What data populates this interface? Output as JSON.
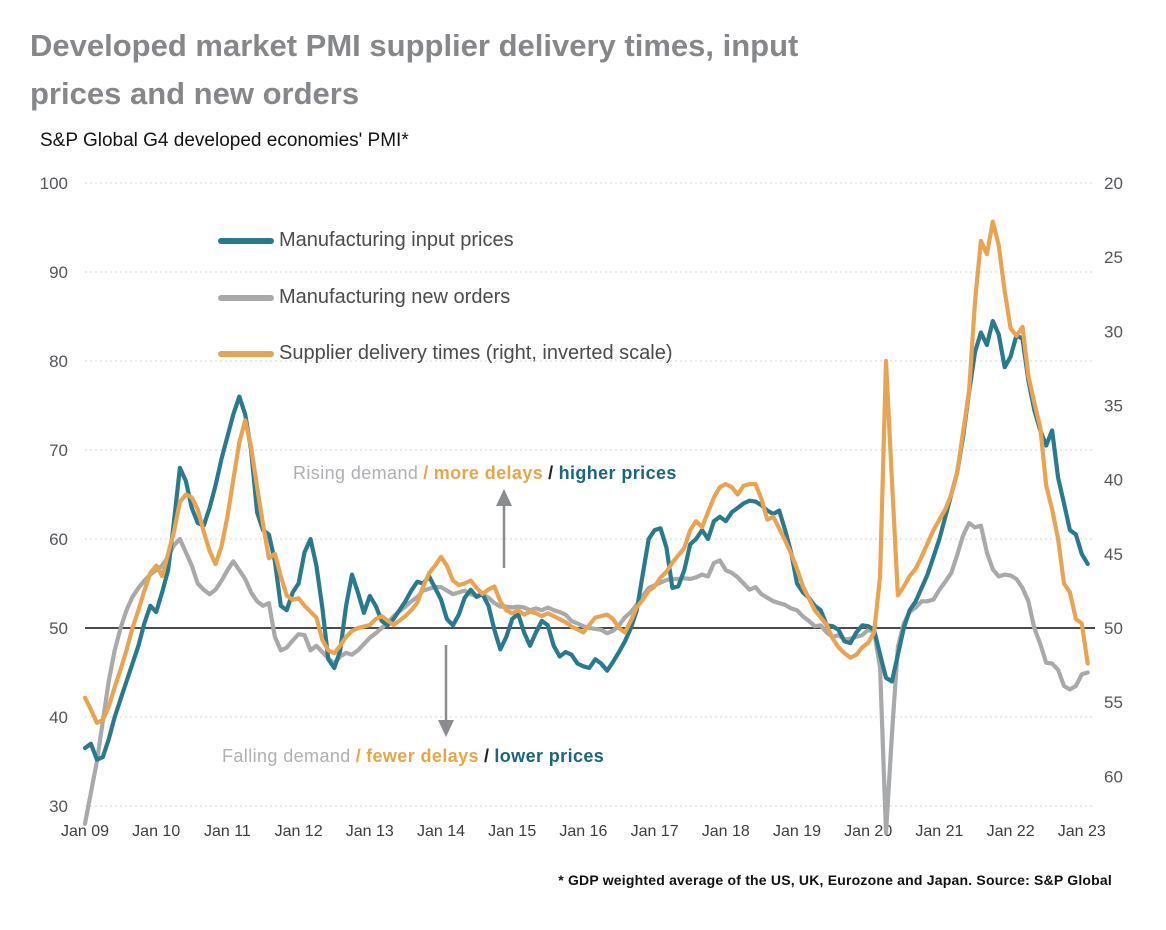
{
  "title": {
    "line1": "Developed market PMI supplier delivery times, input",
    "line2": "prices and new orders"
  },
  "subtitle": "S&P Global G4 developed economies' PMI*",
  "footnote": "* GDP weighted average of the US, UK, Eurozone and Japan.   Source: S&P Global",
  "colors": {
    "input_prices": "#2a7a8e",
    "new_orders": "#a7a9ab",
    "delivery_times": "#e9a452",
    "grid": "#d4d4d4",
    "fifty_line": "#4b4b4d",
    "title": "#85878a",
    "axis_text": "#55565a",
    "arrow": "#8a8c8f"
  },
  "legend": [
    {
      "label": "Manufacturing input prices",
      "color": "#2a7a8e"
    },
    {
      "label": "Manufacturing new orders",
      "color": "#a7a9ab"
    },
    {
      "label": "Supplier delivery times (right, inverted scale)",
      "color": "#e9a452"
    }
  ],
  "annotations": {
    "rising": {
      "demand": "Rising demand",
      "slash1": "/",
      "delays": "more delays",
      "slash2": "/",
      "prices": "higher prices"
    },
    "falling": {
      "demand": "Falling demand",
      "slash1": "/",
      "delays": "fewer delays",
      "slash2": "/",
      "prices": "lower prices"
    }
  },
  "chart_data": {
    "type": "line",
    "x_unit": "monthly",
    "x_start": "Jan 2009",
    "x_end": "Feb 2023",
    "x_ticks": [
      "Jan 09",
      "Jan 10",
      "Jan 11",
      "Jan 12",
      "Jan 13",
      "Jan 14",
      "Jan 15",
      "Jan 16",
      "Jan 17",
      "Jan 18",
      "Jan 19",
      "Jan 20",
      "Jan 21",
      "Jan 22",
      "Jan 23"
    ],
    "left_axis": {
      "ticks": [
        100,
        90,
        80,
        70,
        60,
        50,
        40,
        30
      ],
      "range": [
        30,
        100
      ],
      "grid": "dotted"
    },
    "right_axis": {
      "ticks": [
        20,
        25,
        30,
        35,
        40,
        45,
        50,
        55,
        60
      ],
      "range": [
        20,
        60
      ],
      "inverted": true
    },
    "reference_line": {
      "value": 50,
      "axis": "left"
    },
    "legend_position": "top-left-inside",
    "series": [
      {
        "name": "Manufacturing new orders",
        "axis": "left",
        "color": "#a7a9ab",
        "values": [
          28,
          31.5,
          35,
          39.5,
          44,
          47.5,
          50,
          52,
          53.5,
          54.5,
          55.3,
          56,
          56.5,
          57,
          58,
          59.3,
          60,
          58.5,
          57,
          55,
          54.3,
          53.8,
          54.3,
          55.3,
          56.5,
          57.5,
          56.5,
          55.5,
          54,
          53,
          52.5,
          52.8,
          49,
          47.5,
          47.8,
          48.6,
          49.3,
          49.2,
          47.5,
          48,
          47.3,
          46.6,
          46,
          46.8,
          47.2,
          47,
          47.5,
          48.2,
          48.9,
          49.4,
          50,
          50.6,
          51.3,
          51.9,
          52.4,
          53,
          53.5,
          54.2,
          54.4,
          54.6,
          54.6,
          54.2,
          53.8,
          54,
          54.2,
          53.8,
          53.6,
          53.8,
          53.4,
          52.8,
          52.4,
          52.4,
          52.3,
          52.4,
          52.3,
          52,
          52.2,
          52,
          52.3,
          52,
          51.8,
          51.5,
          50.8,
          50.5,
          50.2,
          50,
          49.9,
          49.8,
          49.4,
          49.7,
          50.3,
          51.2,
          51.8,
          52.6,
          53.6,
          54.5,
          54.8,
          55.1,
          55.4,
          55.5,
          55.5,
          55.6,
          55.5,
          55.7,
          56,
          55.8,
          57.3,
          57.6,
          56.5,
          56.2,
          55.7,
          55,
          54.3,
          54.6,
          53.8,
          53.4,
          53,
          52.8,
          52.6,
          52.2,
          52,
          51.3,
          50.8,
          50.2,
          50.3,
          49.5,
          49,
          49.2,
          48.7,
          48.8,
          49,
          49.2,
          49.8,
          49.6,
          45.5,
          27,
          38,
          47.9,
          50.5,
          51.8,
          52.3,
          53,
          53,
          53.2,
          54.3,
          55.2,
          56.2,
          58.2,
          60.4,
          61.8,
          61.3,
          61.5,
          58.5,
          56.6,
          55.8,
          56,
          55.9,
          55.5,
          54.5,
          53,
          50,
          48.2,
          46.1,
          46,
          45.3,
          43.5,
          43.1,
          43.5,
          44.8,
          45
        ]
      },
      {
        "name": "Manufacturing input prices",
        "axis": "left",
        "color": "#2a7a8e",
        "values": [
          36.5,
          37,
          35.2,
          35.5,
          37.5,
          40,
          42,
          44,
          46,
          48,
          50.5,
          52.5,
          51.8,
          54,
          56.5,
          62,
          68,
          66.5,
          63.5,
          61.8,
          61.5,
          63.5,
          66,
          69,
          71.5,
          74,
          76,
          74,
          70,
          63,
          61,
          60.5,
          57.5,
          52.5,
          52,
          54,
          55,
          58.5,
          60,
          57,
          52.3,
          46.5,
          45.5,
          47.4,
          52.5,
          56,
          54,
          51.7,
          53.6,
          52.5,
          50.8,
          50.3,
          51,
          52,
          53,
          54.2,
          55.2,
          55,
          55.8,
          54.5,
          53.2,
          51,
          50.3,
          51.5,
          53.4,
          54.3,
          53.5,
          53.8,
          52.5,
          49.8,
          47.6,
          49,
          51,
          51.6,
          49.5,
          48,
          49.5,
          50.8,
          50.3,
          48,
          46.8,
          47.3,
          47,
          46,
          45.7,
          45.5,
          46.5,
          46,
          45.2,
          46.2,
          47.3,
          48.5,
          50,
          52,
          56,
          60,
          61,
          61.2,
          59,
          54.5,
          54.7,
          56.5,
          59.4,
          60,
          61,
          60,
          62,
          62.5,
          62,
          63,
          63.5,
          64,
          64.3,
          64.2,
          63.8,
          63.2,
          62.8,
          63.2,
          61,
          58.5,
          55,
          54,
          53.4,
          52.5,
          52,
          50.3,
          50.2,
          49.8,
          48.5,
          48.3,
          49.5,
          50.3,
          50.2,
          49.8,
          47,
          44.4,
          44,
          47,
          50,
          52,
          53,
          54.5,
          56,
          58,
          60,
          62.5,
          65,
          67.5,
          71.5,
          76.5,
          81,
          83.2,
          81.8,
          84.5,
          83,
          79.3,
          80.5,
          82.9,
          82.5,
          77.8,
          74.5,
          72.2,
          70.5,
          72.2,
          66.9,
          64,
          61,
          60.5,
          58.3,
          57.2
        ]
      },
      {
        "name": "Supplier delivery times",
        "axis": "right",
        "color": "#e9a452",
        "values": [
          54.7,
          55.5,
          56.4,
          56.2,
          55.3,
          54,
          52.8,
          51.5,
          50,
          48.8,
          47.5,
          46.3,
          45.8,
          46.5,
          45,
          43.5,
          41.5,
          41,
          41.2,
          42,
          43.5,
          44.8,
          45.7,
          44.5,
          42.5,
          40,
          37.5,
          36,
          37.8,
          40.5,
          43,
          45.3,
          45,
          46.5,
          47.8,
          48.1,
          48,
          48.5,
          48.9,
          49.3,
          50.8,
          51.5,
          51.7,
          51.2,
          50.6,
          50.2,
          50,
          49.9,
          49.8,
          49.4,
          49.2,
          49.5,
          49.8,
          49.5,
          49.2,
          48.8,
          48.3,
          47.2,
          46.3,
          45.8,
          45.2,
          45.8,
          46.8,
          47.1,
          47,
          46.8,
          47.3,
          47.7,
          47.4,
          47.2,
          48.2,
          48.8,
          49,
          48.8,
          49.1,
          48.9,
          49,
          49.2,
          49,
          49.2,
          49.4,
          49.6,
          49.9,
          50.1,
          50.3,
          49.8,
          49.3,
          49.2,
          49.1,
          49.4,
          50,
          50.3,
          49.5,
          48.6,
          48.1,
          47.5,
          47.2,
          46.6,
          46.2,
          45.6,
          45.1,
          44.6,
          43.4,
          42.8,
          43.2,
          42.2,
          41.2,
          40.5,
          40.3,
          40.5,
          41,
          40.4,
          40.3,
          40.3,
          41.3,
          42.7,
          42.5,
          43.3,
          44.1,
          45,
          46,
          47.2,
          48,
          48.8,
          49.3,
          49.8,
          50.7,
          51.3,
          51.7,
          52,
          51.8,
          51.3,
          51,
          50.3,
          46.5,
          32,
          40,
          47.8,
          47.2,
          46.5,
          46,
          45.2,
          44.3,
          43.4,
          42.7,
          42,
          41,
          39.5,
          36.8,
          34,
          28,
          23.9,
          24.8,
          22.6,
          24.2,
          27.3,
          29.8,
          30.3,
          29.7,
          33,
          34.8,
          36.5,
          40.4,
          42,
          44,
          47,
          47.6,
          49.4,
          49.7,
          52.4
        ]
      }
    ]
  }
}
